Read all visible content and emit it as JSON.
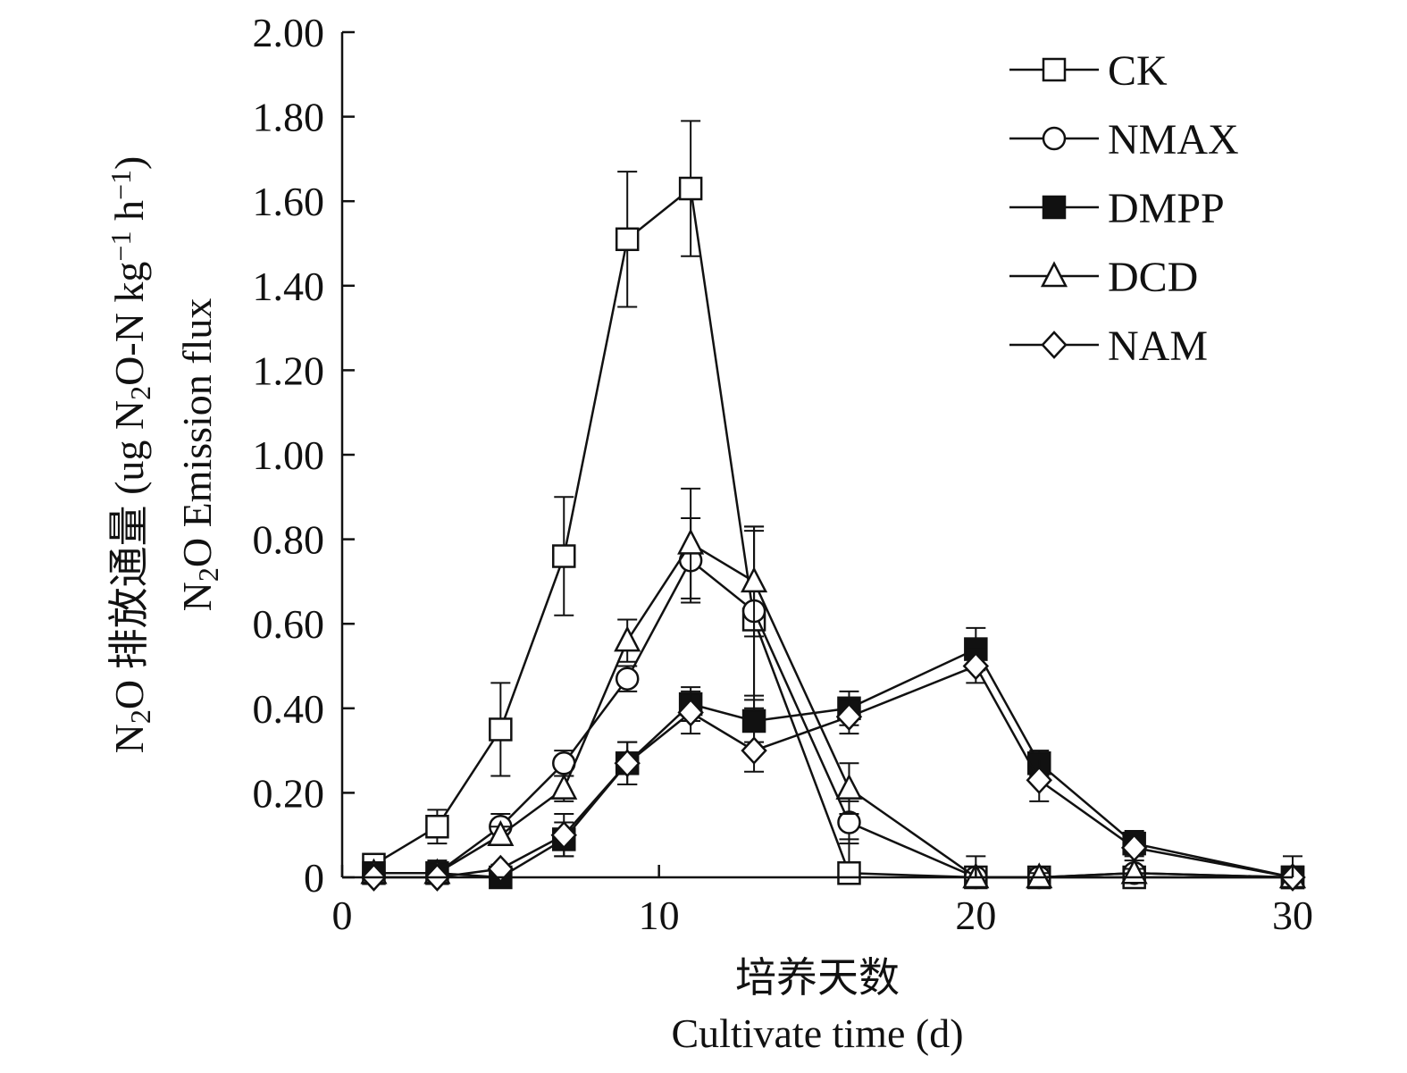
{
  "chart_data": {
    "type": "line",
    "x_label_cn": "培养天数",
    "x_label_en": "Cultivate time (d)",
    "y_label_cn_parts": [
      "N",
      "2",
      "O 排放通量 (ug N",
      "2",
      "O-N kg",
      "−1",
      " h",
      "−1",
      ")"
    ],
    "y_label_en_parts": [
      "N",
      "2",
      "O Emission flux"
    ],
    "xlim": [
      0,
      30
    ],
    "ylim": [
      0,
      2.0
    ],
    "x_ticks": [
      0,
      10,
      20,
      30
    ],
    "x_tick_labels": [
      "0",
      "10",
      "20",
      "30"
    ],
    "y_ticks": [
      0,
      0.2,
      0.4,
      0.6,
      0.8,
      1.0,
      1.2,
      1.4,
      1.6,
      1.8,
      2.0
    ],
    "y_tick_labels": [
      "0",
      "0.20",
      "0.40",
      "0.60",
      "0.80",
      "1.00",
      "1.20",
      "1.40",
      "1.60",
      "1.80",
      "2.00"
    ],
    "grid": false,
    "legend_position": "top-right",
    "x": [
      1,
      3,
      5,
      7,
      9,
      11,
      13,
      16,
      20,
      22,
      25,
      30
    ],
    "series": [
      {
        "name": "CK",
        "marker": "square-open",
        "values": [
          0.03,
          0.12,
          0.35,
          0.76,
          1.51,
          1.63,
          0.61,
          0.01,
          0.0,
          0.0,
          0.0,
          0.0
        ],
        "errors": [
          0.01,
          0.04,
          0.11,
          0.14,
          0.16,
          0.16,
          0.21,
          0.08,
          0.01,
          0.01,
          0.01,
          0.01
        ]
      },
      {
        "name": "NMAX",
        "marker": "circle-open",
        "values": [
          0.01,
          0.01,
          0.12,
          0.27,
          0.47,
          0.75,
          0.63,
          0.13,
          0.0,
          0.0,
          0.01,
          0.0
        ],
        "errors": [
          0.01,
          0.02,
          0.03,
          0.03,
          0.03,
          0.1,
          0.2,
          0.05,
          0.01,
          0.02,
          0.01,
          0.01
        ]
      },
      {
        "name": "DMPP",
        "marker": "square-filled",
        "values": [
          0.01,
          0.01,
          0.0,
          0.09,
          0.27,
          0.41,
          0.37,
          0.4,
          0.54,
          0.27,
          0.08,
          0.0
        ],
        "errors": [
          0.01,
          0.02,
          0.01,
          0.04,
          0.05,
          0.04,
          0.05,
          0.04,
          0.05,
          0.03,
          0.03,
          0.01
        ]
      },
      {
        "name": "DCD",
        "marker": "triangle-open",
        "values": [
          0.01,
          0.01,
          0.1,
          0.21,
          0.56,
          0.79,
          0.7,
          0.21,
          0.0,
          0.0,
          0.01,
          0.0
        ],
        "errors": [
          0.01,
          0.03,
          0.02,
          0.03,
          0.05,
          0.13,
          0.13,
          0.06,
          0.05,
          0.01,
          0.01,
          0.05
        ]
      },
      {
        "name": "NAM",
        "marker": "diamond-open",
        "values": [
          0.0,
          0.0,
          0.02,
          0.1,
          0.27,
          0.39,
          0.3,
          0.38,
          0.5,
          0.23,
          0.07,
          0.0
        ],
        "errors": [
          0.01,
          0.01,
          0.01,
          0.05,
          0.05,
          0.05,
          0.05,
          0.04,
          0.04,
          0.05,
          0.03,
          0.01
        ]
      }
    ]
  }
}
